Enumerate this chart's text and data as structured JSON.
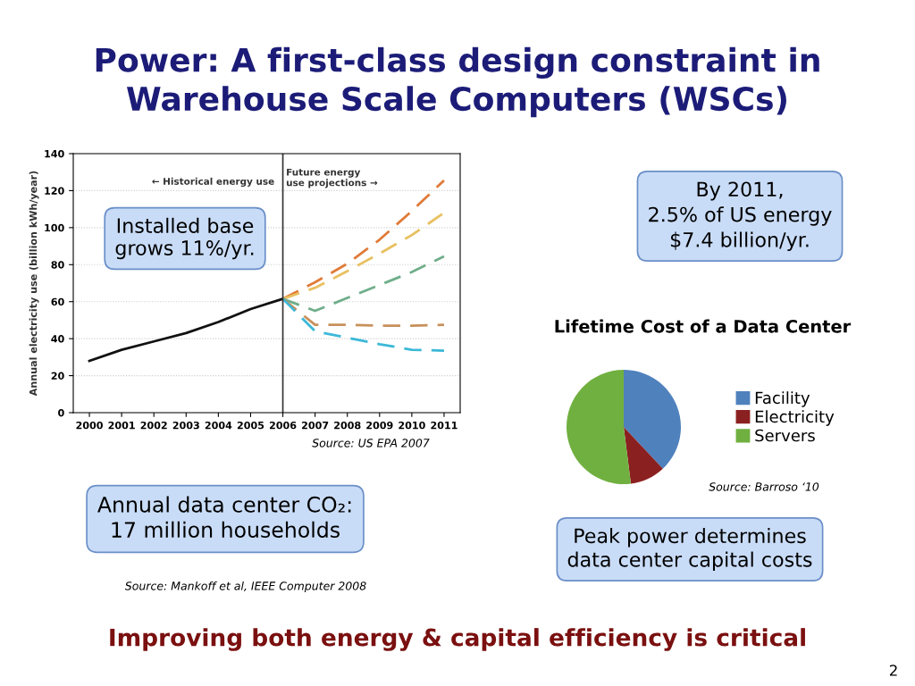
{
  "chart_data": [
    {
      "type": "line",
      "title": "Power: A first-class design constraint in\nWarehouse Scale Computers (WSCs)",
      "ylabel": "Annual electricity use (billion kWh/year)",
      "xlim": [
        1999.5,
        2011.5
      ],
      "xticks": [
        2000,
        2001,
        2002,
        2003,
        2004,
        2005,
        2006,
        2007,
        2008,
        2009,
        2010,
        2011
      ],
      "ylim": [
        0,
        140
      ],
      "yticks": [
        0,
        20,
        40,
        60,
        80,
        100,
        120,
        140
      ],
      "grid": "y",
      "marker": "none",
      "legend": false,
      "series": [
        {
          "color": "#111111",
          "line_style": "solid",
          "x": [
            2000,
            2001,
            2002,
            2003,
            2004,
            2005,
            2006
          ],
          "values": [
            28,
            34,
            38.5,
            43,
            49,
            56,
            61.5
          ]
        },
        {
          "color": "#e07b39",
          "line_style": "dashed",
          "x": [
            2006,
            2007,
            2008,
            2009,
            2010,
            2011
          ],
          "values": [
            61.5,
            70.5,
            80.5,
            93.5,
            109,
            125.5
          ]
        },
        {
          "color": "#e8c060",
          "line_style": "dashed",
          "x": [
            2006,
            2007,
            2008,
            2009,
            2010,
            2011
          ],
          "values": [
            61.5,
            67.5,
            76.5,
            86,
            96,
            108
          ]
        },
        {
          "color": "#6fae8a",
          "line_style": "dashed",
          "x": [
            2006,
            2007,
            2008,
            2009,
            2010,
            2011
          ],
          "values": [
            61.5,
            55,
            62,
            69,
            76,
            84.5
          ]
        },
        {
          "color": "#c8905a",
          "line_style": "dashed",
          "x": [
            2006,
            2007,
            2008,
            2009,
            2010,
            2011
          ],
          "values": [
            61.5,
            47.5,
            47.5,
            47,
            47,
            47.5
          ]
        },
        {
          "color": "#3cb8d8",
          "line_style": "dashed",
          "x": [
            2006,
            2007,
            2008,
            2009,
            2010,
            2011
          ],
          "values": [
            61.5,
            44,
            40.5,
            37,
            34,
            33.5
          ]
        }
      ],
      "ref_lines": [
        {
          "axis": "x",
          "value": 2006,
          "color": "#333333",
          "line_style": "solid"
        }
      ],
      "annotations": [
        "← Historical energy use",
        "Future energy\nuse projections →",
        "Installed base\ngrows 11%/yr.",
        "By 2011,\n2.5% of US energy\n$7.4 billion/yr.",
        "Source: US EPA 2007",
        "Annual data center CO₂:\n17 million households",
        "Source: Mankoff et al, IEEE Computer 2008",
        "Improving both energy & capital efficiency is critical",
        "2"
      ]
    },
    {
      "type": "pie",
      "title": "Lifetime Cost of a Data Center",
      "categories": [
        "Facility",
        "Electricity",
        "Servers"
      ],
      "values": [
        38,
        10,
        52
      ],
      "colors": [
        "#4f81bd",
        "#8b2020",
        "#70b040"
      ],
      "legend": "right",
      "annotations": [
        "Source: Barroso ‘10",
        "Peak power determines\ndata center capital costs"
      ]
    }
  ]
}
